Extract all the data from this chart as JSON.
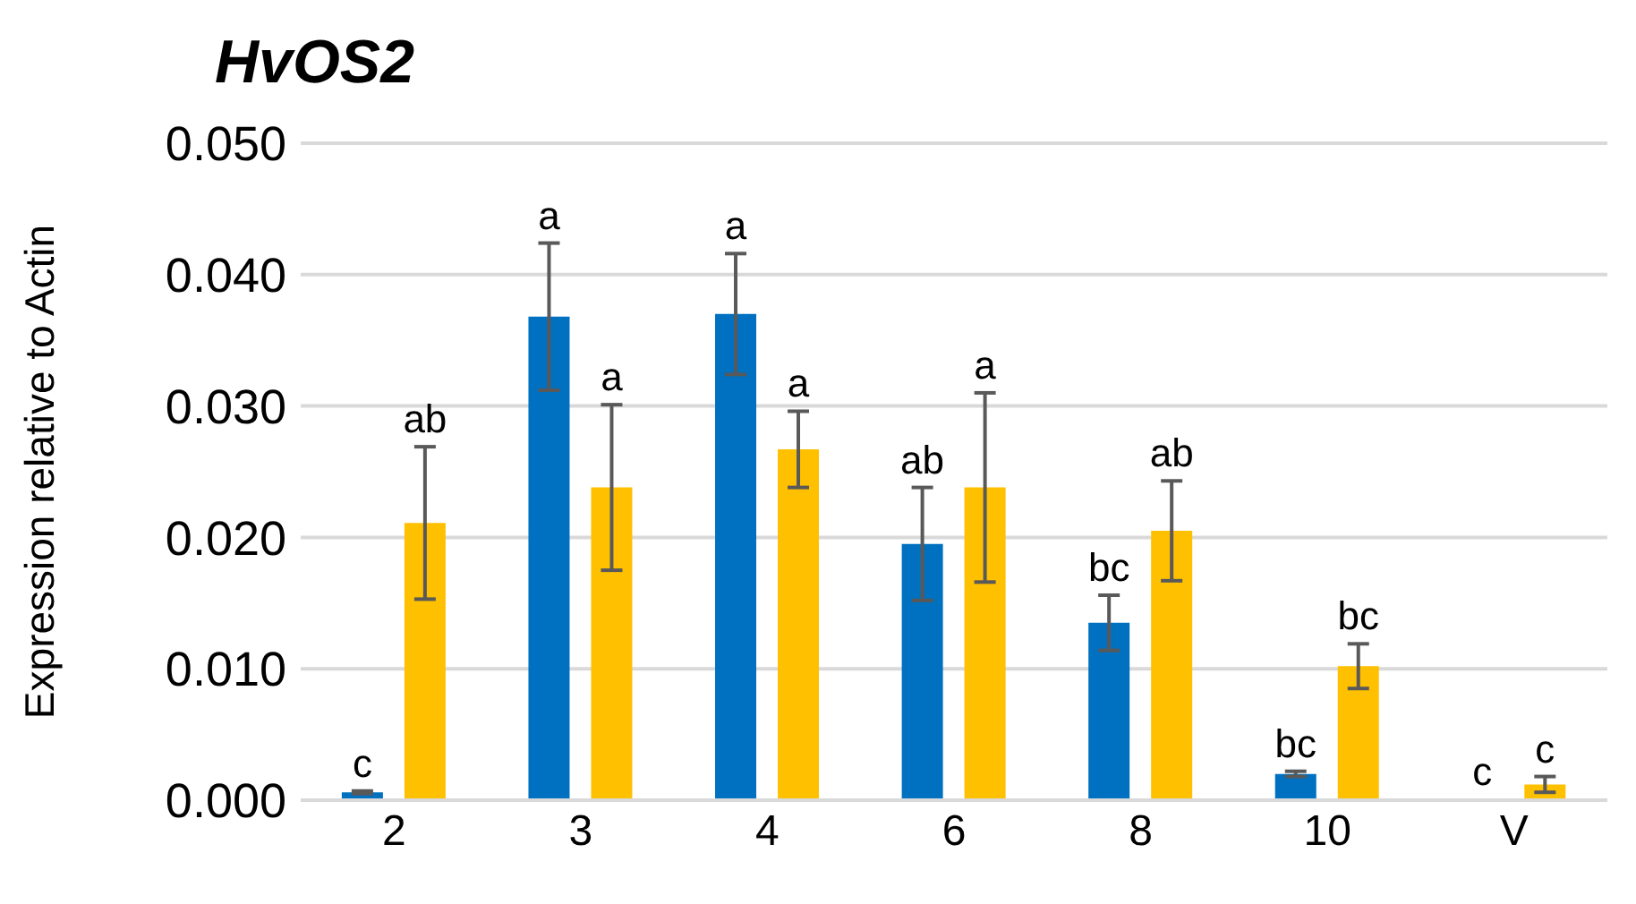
{
  "chart_data": {
    "type": "bar",
    "title": "HvOS2",
    "ylabel": "Expression relative to Actin",
    "categories": [
      "2",
      "3",
      "4",
      "6",
      "8",
      "10",
      "V"
    ],
    "series": [
      {
        "color": "#0070c0",
        "values": [
          0.0006,
          0.0368,
          0.037,
          0.0195,
          0.0135,
          0.002,
          0.0001
        ],
        "errors": [
          0.0001,
          0.0056,
          0.0046,
          0.0043,
          0.0021,
          0.0002,
          null
        ],
        "value_labels": [
          "c",
          "a",
          "a",
          "ab",
          "bc",
          "bc",
          "c"
        ]
      },
      {
        "color": "#ffc000",
        "values": [
          0.0211,
          0.0238,
          0.0267,
          0.0238,
          0.0205,
          0.0102,
          0.0012
        ],
        "errors": [
          0.0058,
          0.0063,
          0.0029,
          0.0072,
          0.0038,
          0.0017,
          0.0006
        ],
        "value_labels": [
          "ab",
          "a",
          "a",
          "a",
          "ab",
          "bc",
          "c"
        ]
      }
    ],
    "ylim": [
      0,
      0.05
    ],
    "yticks": [
      {
        "value": 0,
        "label": "0.000"
      },
      {
        "value": 0.01,
        "label": "0.010"
      },
      {
        "value": 0.02,
        "label": "0.020"
      },
      {
        "value": 0.03,
        "label": "0.030"
      },
      {
        "value": 0.04,
        "label": "0.040"
      },
      {
        "value": 0.05,
        "label": "0.050"
      }
    ],
    "grid": "y",
    "legend": false
  }
}
